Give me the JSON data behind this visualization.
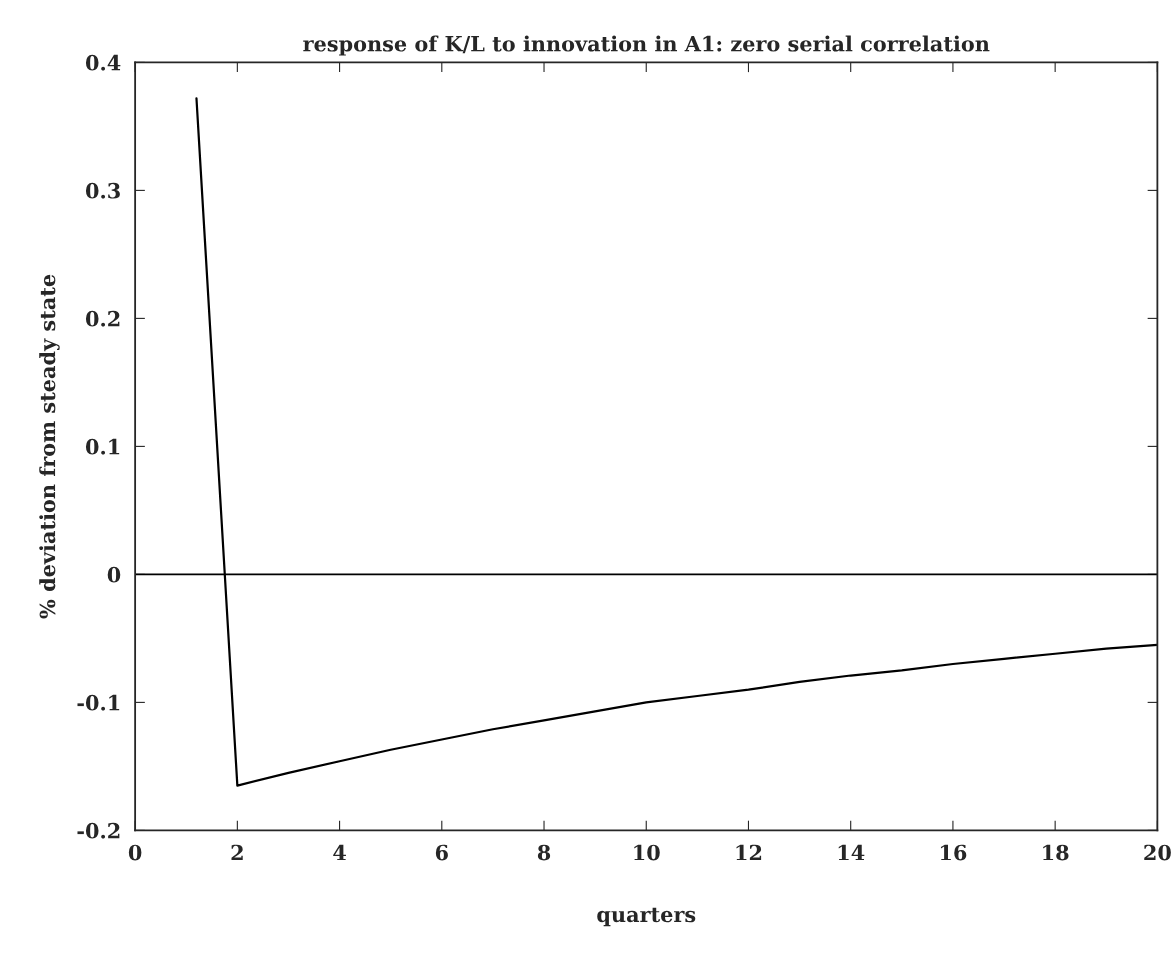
{
  "chart_data": {
    "type": "line",
    "title": "response of K/L to innovation in A1: zero serial correlation",
    "xlabel": "quarters",
    "ylabel": "% deviation from steady state",
    "x": [
      1.2,
      2,
      3,
      4,
      5,
      6,
      7,
      8,
      9,
      10,
      11,
      12,
      13,
      14,
      15,
      16,
      17,
      18,
      19,
      20
    ],
    "series": [
      {
        "color": "#000000",
        "values": [
          0.372,
          -0.165,
          -0.155,
          -0.146,
          -0.137,
          -0.129,
          -0.121,
          -0.114,
          -0.107,
          -0.1,
          -0.095,
          -0.09,
          -0.084,
          -0.079,
          -0.075,
          -0.07,
          -0.066,
          -0.062,
          -0.058,
          -0.055
        ]
      }
    ],
    "xlim": [
      0,
      20
    ],
    "ylim": [
      -0.2,
      0.4
    ],
    "xticks": [
      0,
      2,
      4,
      6,
      8,
      10,
      12,
      14,
      16,
      18,
      20
    ],
    "yticks": [
      -0.2,
      -0.1,
      0,
      0.1,
      0.2,
      0.3,
      0.4
    ],
    "ref_lines": [
      {
        "axis": "y",
        "value": 0,
        "color": "#000000"
      }
    ],
    "grid": false,
    "marker": "none",
    "line_style": "solid"
  }
}
